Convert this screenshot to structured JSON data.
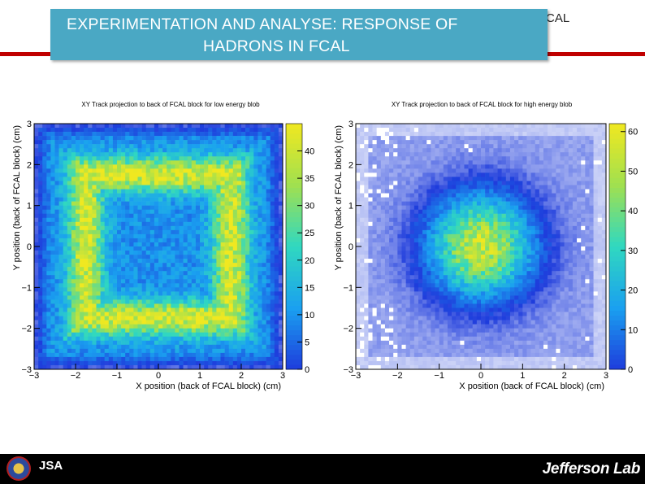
{
  "slide": {
    "title_line1": "EXPERIMENTATION AND ANALYSE: RESPONSE OF",
    "title_line2": "HADRONS IN FCAL",
    "behind_title_fragment": "CAL",
    "footer_left_text": "JSA",
    "footer_right_text": "Jefferson Lab",
    "accent_color": "#c00000",
    "title_bg_color": "#4aa8c4"
  },
  "chart_data": [
    {
      "type": "heatmap",
      "title": "XY Track projection to back of FCAL block for low energy blob",
      "xlabel": "X position (back of FCAL block) (cm)",
      "ylabel": "Y position (back of FCAL block) (cm)",
      "xlim": [
        -3,
        3
      ],
      "ylim": [
        -3,
        3
      ],
      "xticks": [
        "-3",
        "-2",
        "-1",
        "0",
        "1",
        "2",
        "3"
      ],
      "yticks": [
        "-3",
        "-2",
        "-1",
        "0",
        "1",
        "2",
        "3"
      ],
      "bins": 60,
      "zlim": [
        0,
        45
      ],
      "zticks": [
        "0",
        "5",
        "10",
        "15",
        "20",
        "25",
        "30",
        "35",
        "40"
      ],
      "colorscale": [
        "#ffffff",
        "#1e3cdc",
        "#1aa0f0",
        "#30d8c0",
        "#a0e050",
        "#f0e820"
      ],
      "pattern": "square ring"
    },
    {
      "type": "heatmap",
      "title": "XY Track projection to back of FCAL block for high energy blob",
      "xlabel": "X position (back of FCAL block) (cm)",
      "ylabel": "Y position (back of FCAL block) (cm)",
      "xlim": [
        -3,
        3
      ],
      "ylim": [
        -3,
        3
      ],
      "xticks": [
        "-3",
        "-2",
        "-1",
        "0",
        "1",
        "2",
        "3"
      ],
      "yticks": [
        "-3",
        "-2",
        "-1",
        "0",
        "1",
        "2",
        "3"
      ],
      "bins": 60,
      "zlim": [
        0,
        62
      ],
      "zticks": [
        "0",
        "10",
        "20",
        "30",
        "40",
        "50",
        "60"
      ],
      "colorscale": [
        "#ffffff",
        "#1e3cdc",
        "#1aa0f0",
        "#30d8c0",
        "#a0e050",
        "#f0e820"
      ],
      "pattern": "central blob"
    }
  ]
}
